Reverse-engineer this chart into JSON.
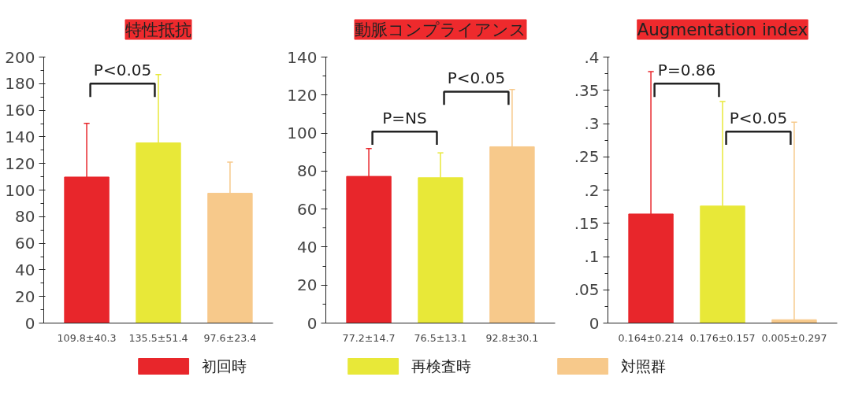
{
  "chart_data": [
    {
      "type": "bar",
      "title": "特性抵抗",
      "categories": [
        "109.8±40.3",
        "135.5±51.4",
        "97.6±23.4"
      ],
      "series": [
        {
          "name": "初回時",
          "color": "#e8262b",
          "values": [
            109.8,
            null,
            null
          ],
          "errors": [
            [
              109.8,
              150.1
            ],
            null,
            null
          ]
        },
        {
          "name": "再検査時",
          "color": "#e8e838",
          "values": [
            null,
            135.5,
            null
          ],
          "errors": [
            null,
            [
              135.5,
              186.9
            ],
            null
          ]
        },
        {
          "name": "対照群",
          "color": "#f7c98b",
          "values": [
            null,
            null,
            97.6
          ],
          "errors": [
            null,
            null,
            [
              97.6,
              121.0
            ]
          ]
        }
      ],
      "ylim": [
        0,
        200
      ],
      "yticks": [
        0,
        20,
        40,
        60,
        80,
        100,
        120,
        140,
        160,
        180,
        200
      ],
      "grid": false,
      "legend": "bottom",
      "annotations": [
        "P<0.05"
      ]
    },
    {
      "type": "bar",
      "title": "動脈コンプライアンス",
      "categories": [
        "77.2±14.7",
        "76.5±13.1",
        "92.8±30.1"
      ],
      "series": [
        {
          "color": "#e8262b",
          "values": [
            77.2,
            null,
            null
          ],
          "errors": [
            [
              77.2,
              91.9
            ],
            null,
            null
          ]
        },
        {
          "color": "#e8e838",
          "values": [
            null,
            76.5,
            null
          ],
          "errors": [
            null,
            [
              76.5,
              89.6
            ],
            null
          ]
        },
        {
          "color": "#f7c98b",
          "values": [
            null,
            null,
            92.8
          ],
          "errors": [
            null,
            null,
            [
              92.8,
              122.9
            ]
          ]
        }
      ],
      "ylim": [
        0,
        140
      ],
      "yticks": [
        0,
        20,
        40,
        60,
        80,
        100,
        120,
        140
      ],
      "grid": false,
      "annotations": [
        "P=NS",
        "P<0.05"
      ]
    },
    {
      "type": "bar",
      "title": "Augmentation index",
      "categories": [
        "0.164±0.214",
        "0.176±0.157",
        "0.005±0.297"
      ],
      "series": [
        {
          "color": "#e8262b",
          "values": [
            0.164,
            null,
            null
          ],
          "errors": [
            [
              0.164,
              0.378
            ],
            null,
            null
          ]
        },
        {
          "color": "#e8e838",
          "values": [
            null,
            0.176,
            null
          ],
          "errors": [
            null,
            [
              0.176,
              0.333
            ],
            null
          ]
        },
        {
          "color": "#f7c98b",
          "values": [
            null,
            null,
            0.005
          ],
          "errors": [
            null,
            null,
            [
              0.005,
              0.302
            ]
          ]
        }
      ],
      "ylim": [
        0,
        0.4
      ],
      "yticks": [
        0,
        {
          "value": 0.05,
          "label": ".05"
        },
        {
          "value": 0.1,
          "label": ".1"
        },
        {
          "value": 0.15,
          "label": ".15"
        },
        {
          "value": 0.2,
          "label": ".2"
        },
        {
          "value": 0.25,
          "label": ".25"
        },
        {
          "value": 0.3,
          "label": ".3"
        },
        {
          "value": 0.35,
          "label": ".35"
        },
        {
          "value": 0.4,
          "label": ".4"
        }
      ],
      "grid": false,
      "annotations": [
        "P=0.86",
        "P<0.05"
      ]
    }
  ]
}
